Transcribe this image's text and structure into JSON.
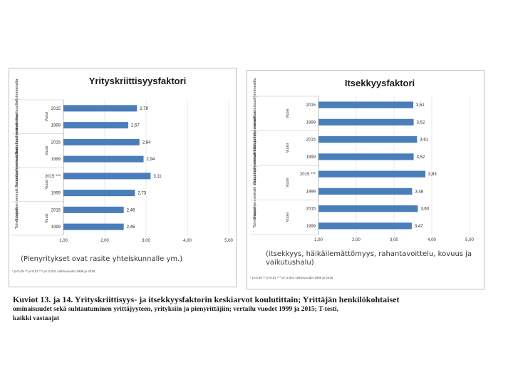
{
  "chart_data": [
    {
      "type": "bar",
      "orientation": "horizontal",
      "title": "Yrityskriittisyysfaktori",
      "categories": [
        "2015",
        "1999",
        "2015",
        "1999",
        "2015 ***",
        "1999",
        "2015",
        "1999"
      ],
      "values": [
        2.78,
        2.57,
        2.84,
        2.94,
        3.11,
        2.73,
        2.46,
        2.46
      ],
      "value_labels": [
        "2,78",
        "2,57",
        "2,84",
        "2,94",
        "3,11",
        "2,73",
        "2,46",
        "2,46"
      ],
      "groups": [
        {
          "label": "Suoprihjen omiraik maaiteusltatlyimmanaltanmtyille assotsalsiotus",
          "sub": "Vuosi"
        },
        {
          "label": "Suoprihjen omiraik instiutuusl/ymineaeltus",
          "sub": "Vuosi"
        },
        {
          "label": "Suoprihjen omiraik instiutuusl/ymineaeltus",
          "sub": "Vuosi"
        },
        {
          "label": "Toiverrtaiset",
          "sub": "Vuosi"
        }
      ],
      "xlim": [
        1.0,
        5.0
      ],
      "xticks": [
        "1,00",
        "2,00",
        "3,00",
        "4,00",
        "5,00"
      ],
      "bar_color": "#4a7ebb",
      "caption": "(Pienyritykset ovat rasite yhteiskunnalle ym.)",
      "footnote": "* p<0,05 ** p<0,01 *** p< 0,001 vaihtovuodet 1999 ja 2015"
    },
    {
      "type": "bar",
      "orientation": "horizontal",
      "title": "Itsekkyysfaktori",
      "categories": [
        "2015",
        "1999",
        "2015",
        "1999",
        "2015 ***",
        "1999",
        "2015",
        "1999"
      ],
      "values": [
        3.51,
        3.52,
        3.61,
        3.52,
        3.83,
        3.48,
        3.63,
        3.47
      ],
      "value_labels": [
        "3,51",
        "3,52",
        "3,61",
        "3,52",
        "3,83",
        "3,48",
        "3,63",
        "3,47"
      ],
      "groups": [
        {
          "label": "Suoprihjen omiraik instiutuusl/yrmineailtusasiaaja asotsalsiotus",
          "sub": "Vuosi"
        },
        {
          "label": "Suoprihjen omiraik instiutuusl/ymineaeltus",
          "sub": "Vuosi"
        },
        {
          "label": "Suoprihjen omiraik instiutuusl/ymineaeltus",
          "sub": "Vuosi"
        },
        {
          "label": "Toiverrtaiset",
          "sub": "Vuosi"
        }
      ],
      "xlim": [
        1.0,
        5.0
      ],
      "xticks": [
        "1,00",
        "2,00",
        "3,00",
        "4,00",
        "5,00"
      ],
      "bar_color": "#4a7ebb",
      "caption": "(itsekkyys, häikäilemättömyys, rahantavoittelu, kovuus ja vaikutushalu)",
      "footnote": "* p<0,05 ** p<0,01 *** p< 0,001 vaihtovuodet 1999 ja 2015"
    }
  ],
  "main_caption": {
    "line1": "Kuviot 13. ja 14. Yrityskriittisyys- ja itsekkyysfaktorin keskiarvot koulutittain; Yrittäjän henkilökohtaiset",
    "line2": "ominaisuudet sekä suhtautuminen yrittäjyyteen, yrityksiin ja pienyrittäjiin; vertailu vuodet 1999 ja 2015; T-testi,",
    "line3": "kaikki vastaajat"
  }
}
